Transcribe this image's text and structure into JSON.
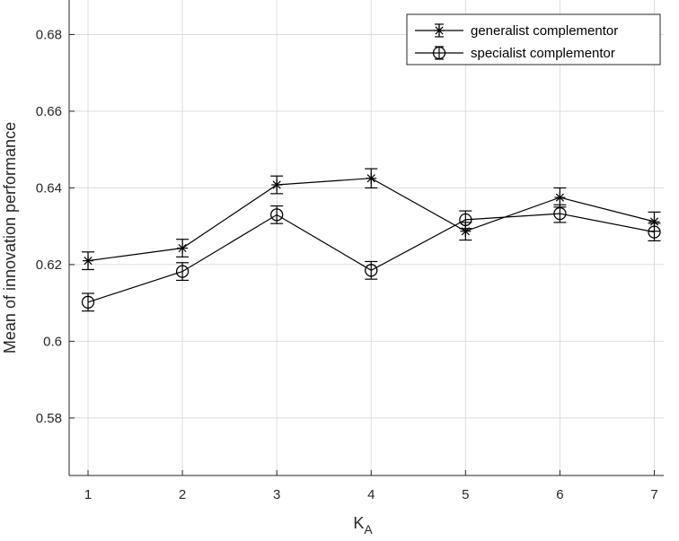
{
  "chart_data": {
    "type": "line",
    "xlabel_main": "K",
    "xlabel_sub": "A",
    "ylabel": "Mean of innovation performance",
    "xlim": [
      0.8,
      7.1
    ],
    "ylim": [
      0.565,
      0.689
    ],
    "xticks": [
      1,
      2,
      3,
      4,
      5,
      6,
      7
    ],
    "yticks": [
      0.58,
      0.6,
      0.62,
      0.64,
      0.66,
      0.68
    ],
    "ytick_labels": [
      "0.58",
      "0.6",
      "0.62",
      "0.64",
      "0.66",
      "0.68"
    ],
    "grid": true,
    "legend_position": "top-right",
    "series": [
      {
        "name": "generalist complementor",
        "marker": "asterisk",
        "color": "#000000",
        "x": [
          1,
          2,
          3,
          4,
          5,
          6,
          7
        ],
        "y": [
          0.621,
          0.6243,
          0.6408,
          0.6425,
          0.6287,
          0.6375,
          0.6312
        ],
        "err": [
          0.0023,
          0.0023,
          0.0023,
          0.0025,
          0.0023,
          0.0025,
          0.0025
        ]
      },
      {
        "name": "specialist complementor",
        "marker": "circle",
        "color": "#000000",
        "x": [
          1,
          2,
          3,
          4,
          5,
          6,
          7
        ],
        "y": [
          0.6102,
          0.6182,
          0.633,
          0.6185,
          0.6317,
          0.6333,
          0.6285
        ],
        "err": [
          0.0023,
          0.0023,
          0.0023,
          0.0023,
          0.0023,
          0.0023,
          0.0023
        ]
      }
    ]
  }
}
